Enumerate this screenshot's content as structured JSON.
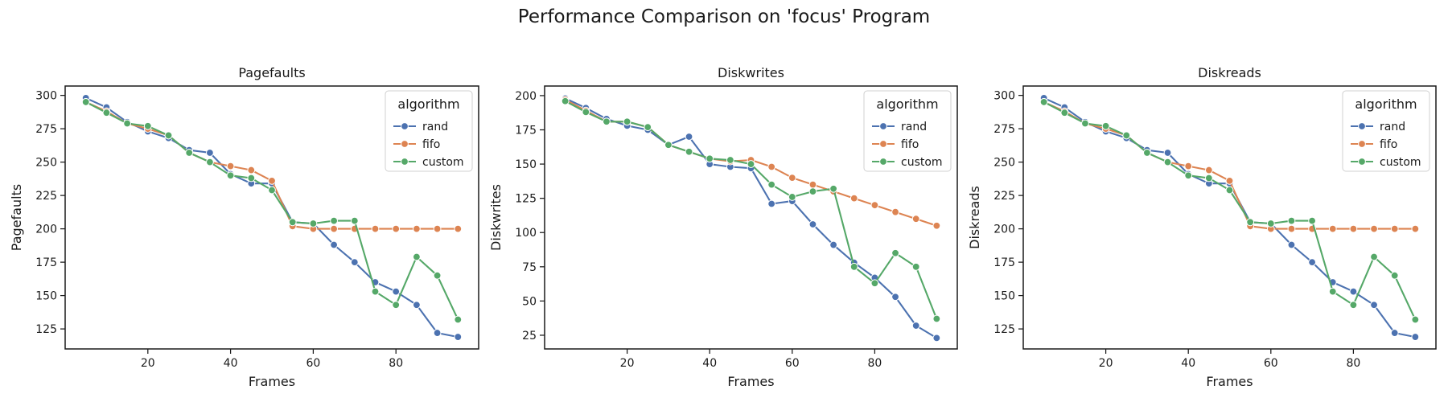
{
  "figure": {
    "title": "Performance Comparison on 'focus' Program"
  },
  "legend_title": "algorithm",
  "colors": {
    "rand": "#4c72b0",
    "fifo": "#dd8452",
    "custom": "#55a868"
  },
  "chart_data": [
    {
      "type": "line",
      "title": "Pagefaults",
      "xlabel": "Frames",
      "ylabel": "Pagefaults",
      "xlim": [
        0,
        100
      ],
      "ylim": [
        110,
        307
      ],
      "xticks": [
        20,
        40,
        60,
        80
      ],
      "yticks": [
        125,
        150,
        175,
        200,
        225,
        250,
        275,
        300
      ],
      "legend_position": "top-right",
      "x": [
        5,
        10,
        15,
        20,
        25,
        30,
        35,
        40,
        45,
        50,
        55,
        60,
        65,
        70,
        75,
        80,
        85,
        90,
        95
      ],
      "series": [
        {
          "name": "rand",
          "values": [
            298,
            291,
            280,
            273,
            268,
            259,
            257,
            241,
            234,
            234,
            205,
            204,
            188,
            175,
            160,
            153,
            143,
            122,
            119
          ]
        },
        {
          "name": "fifo",
          "values": [
            295,
            288,
            279,
            275,
            270,
            257,
            250,
            247,
            244,
            236,
            202,
            200,
            200,
            200,
            200,
            200,
            200,
            200,
            200
          ]
        },
        {
          "name": "custom",
          "values": [
            295,
            287,
            279,
            277,
            270,
            257,
            250,
            240,
            238,
            229,
            205,
            204,
            206,
            206,
            153,
            143,
            179,
            165,
            132
          ]
        }
      ]
    },
    {
      "type": "line",
      "title": "Diskwrites",
      "xlabel": "Frames",
      "ylabel": "Diskwrites",
      "xlim": [
        0,
        100
      ],
      "ylim": [
        15,
        207
      ],
      "xticks": [
        20,
        40,
        60,
        80
      ],
      "yticks": [
        25,
        50,
        75,
        100,
        125,
        150,
        175,
        200
      ],
      "legend_position": "top-right",
      "x": [
        5,
        10,
        15,
        20,
        25,
        30,
        35,
        40,
        45,
        50,
        55,
        60,
        65,
        70,
        75,
        80,
        85,
        90,
        95
      ],
      "series": [
        {
          "name": "rand",
          "values": [
            198,
            191,
            183,
            178,
            175,
            164,
            170,
            150,
            148,
            147,
            121,
            123,
            106,
            91,
            78,
            67,
            53,
            32,
            23
          ]
        },
        {
          "name": "fifo",
          "values": [
            197,
            189,
            181,
            181,
            177,
            164,
            159,
            154,
            152,
            153,
            148,
            140,
            135,
            130,
            125,
            120,
            115,
            110,
            105
          ]
        },
        {
          "name": "custom",
          "values": [
            196,
            188,
            181,
            181,
            177,
            164,
            159,
            154,
            153,
            150,
            135,
            126,
            130,
            132,
            75,
            63,
            85,
            75,
            37
          ]
        }
      ]
    },
    {
      "type": "line",
      "title": "Diskreads",
      "xlabel": "Frames",
      "ylabel": "Diskreads",
      "xlim": [
        0,
        100
      ],
      "ylim": [
        110,
        307
      ],
      "xticks": [
        20,
        40,
        60,
        80
      ],
      "yticks": [
        125,
        150,
        175,
        200,
        225,
        250,
        275,
        300
      ],
      "legend_position": "top-right",
      "x": [
        5,
        10,
        15,
        20,
        25,
        30,
        35,
        40,
        45,
        50,
        55,
        60,
        65,
        70,
        75,
        80,
        85,
        90,
        95
      ],
      "series": [
        {
          "name": "rand",
          "values": [
            298,
            291,
            280,
            273,
            268,
            259,
            257,
            241,
            234,
            234,
            205,
            204,
            188,
            175,
            160,
            153,
            143,
            122,
            119
          ]
        },
        {
          "name": "fifo",
          "values": [
            295,
            288,
            279,
            275,
            270,
            257,
            250,
            247,
            244,
            236,
            202,
            200,
            200,
            200,
            200,
            200,
            200,
            200,
            200
          ]
        },
        {
          "name": "custom",
          "values": [
            295,
            287,
            279,
            277,
            270,
            257,
            250,
            240,
            238,
            229,
            205,
            204,
            206,
            206,
            153,
            143,
            179,
            165,
            132
          ]
        }
      ]
    }
  ]
}
